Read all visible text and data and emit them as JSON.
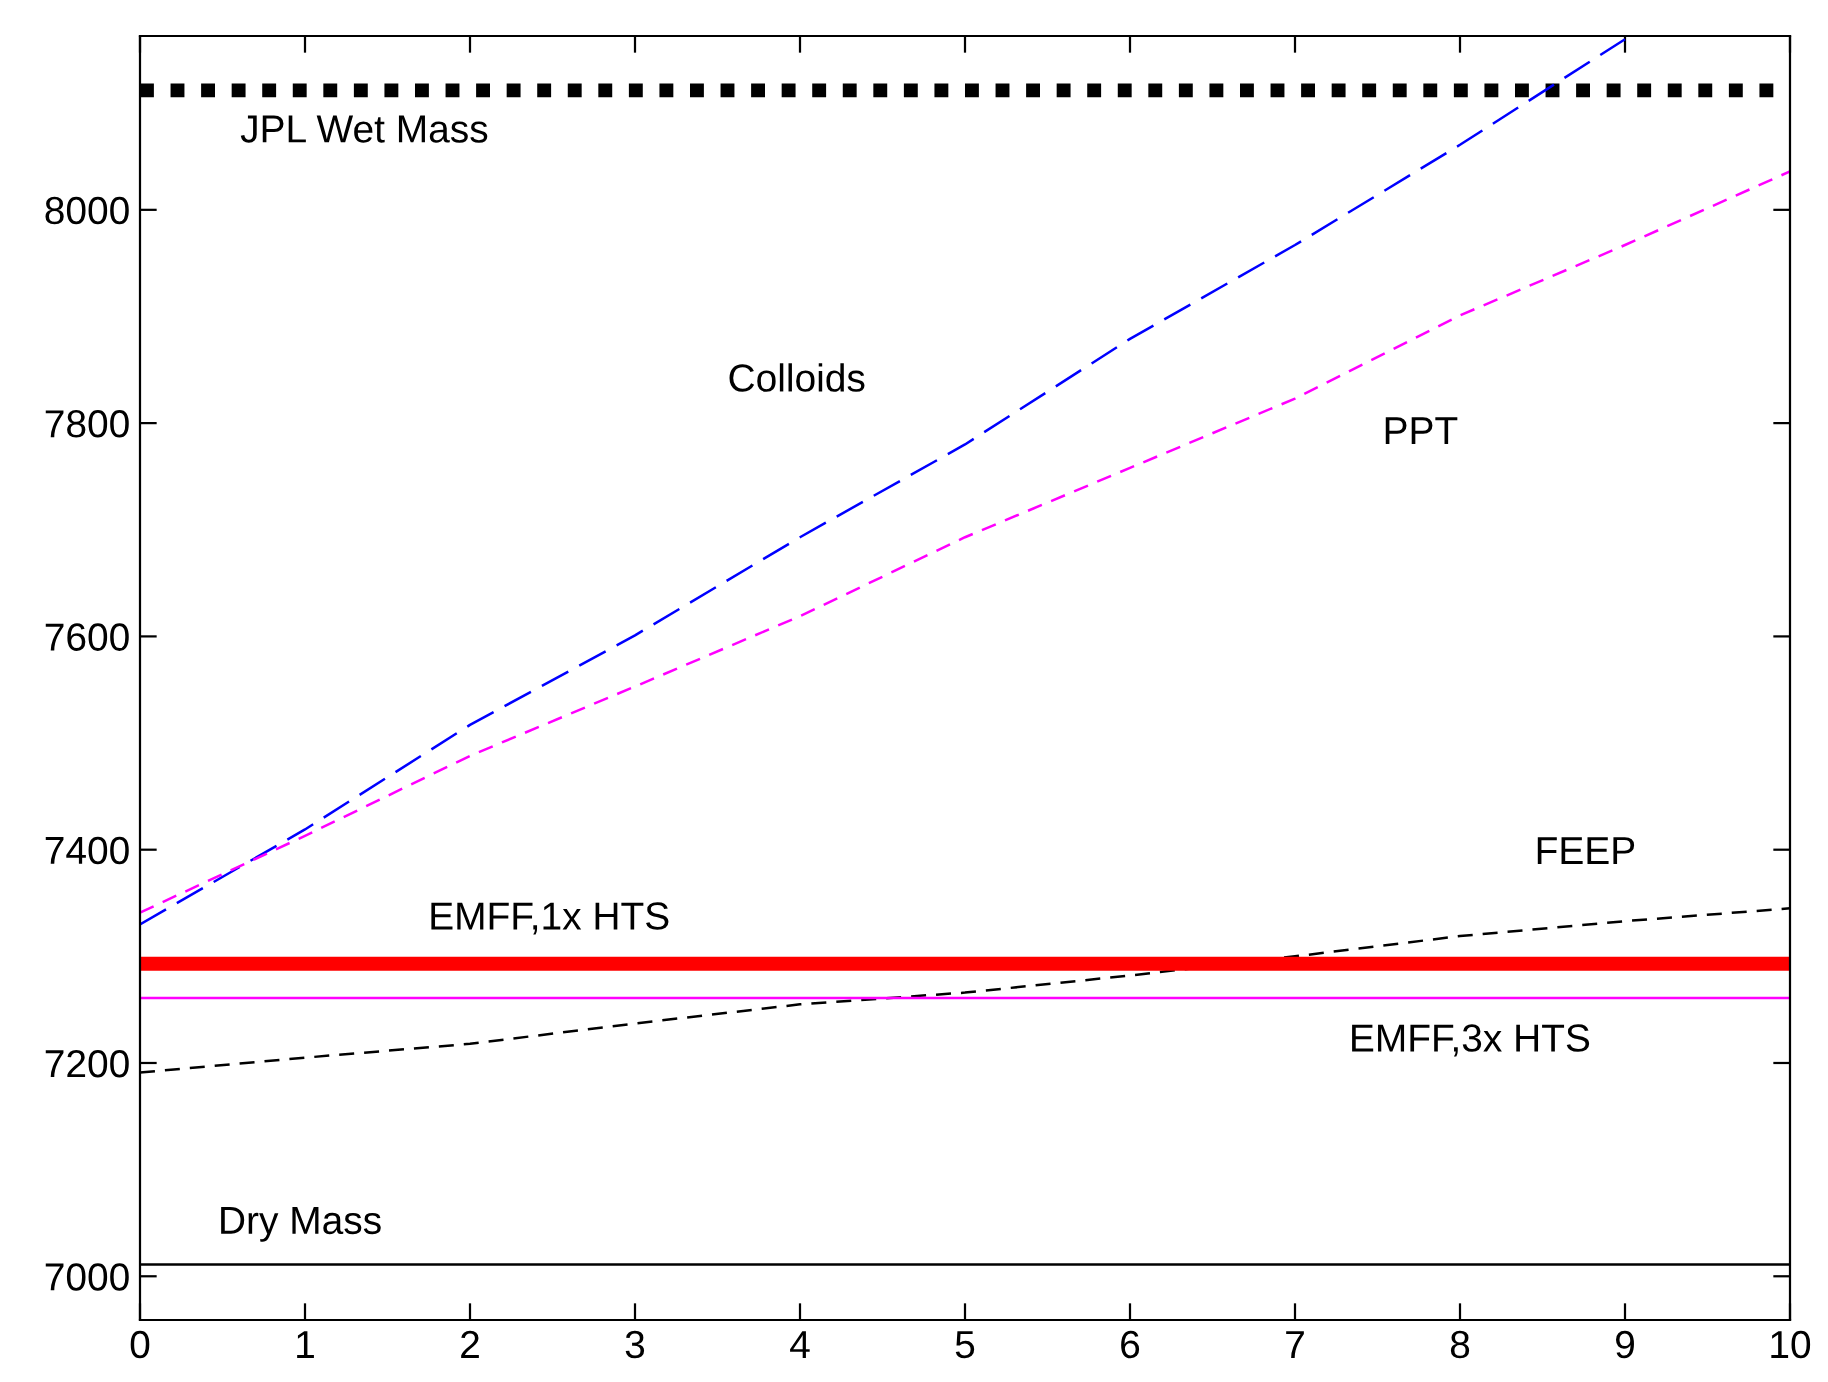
{
  "chart_data": {
    "type": "line",
    "x": [
      0,
      1,
      2,
      3,
      4,
      5,
      6,
      7,
      8,
      9,
      10
    ],
    "series": [
      {
        "name": "JPL Wet Mass",
        "color": "#000000",
        "line_style": "dotted",
        "values": [
          8112,
          8112,
          8112,
          8112,
          8112,
          8112,
          8112,
          8112,
          8112,
          8112,
          8112
        ]
      },
      {
        "name": "Colloids",
        "color": "#0000ff",
        "line_style": "dashed",
        "values": [
          7330,
          7419,
          7517,
          7601,
          7693,
          7780,
          7879,
          7967,
          8061,
          8160,
          null
        ]
      },
      {
        "name": "PPT",
        "color": "#ff00ff",
        "line_style": "dashed",
        "values": [
          7341,
          7413,
          7488,
          7553,
          7619,
          7693,
          7758,
          7823,
          7901,
          7967,
          8036
        ]
      },
      {
        "name": "FEEP",
        "color": "#000000",
        "line_style": "dashed",
        "values": [
          7191,
          7205,
          7218,
          7237,
          7255,
          7266,
          7282,
          7300,
          7319,
          7333,
          7345
        ]
      },
      {
        "name": "EMFF,1x HTS",
        "color": "#ff0000",
        "line_style": "solid",
        "values": [
          7293,
          7293,
          7293,
          7293,
          7293,
          7293,
          7293,
          7293,
          7293,
          7293,
          7293
        ]
      },
      {
        "name": "EMFF,3x HTS",
        "color": "#ff00ff",
        "line_style": "solid",
        "values": [
          7261,
          7261,
          7261,
          7261,
          7261,
          7261,
          7261,
          7261,
          7261,
          7261,
          7261
        ]
      },
      {
        "name": "Dry Mass",
        "color": "#000000",
        "line_style": "solid",
        "values": [
          7011,
          7011,
          7011,
          7011,
          7011,
          7011,
          7011,
          7011,
          7011,
          7011,
          7011
        ]
      }
    ],
    "xlim": [
      0,
      10
    ],
    "ylim": [
      6959,
      8163
    ],
    "xticks": [
      0,
      1,
      2,
      3,
      4,
      5,
      6,
      7,
      8,
      9,
      10
    ],
    "yticks": [
      7000,
      7200,
      7400,
      7600,
      7800,
      8000
    ],
    "grid": false,
    "legend": false,
    "marker": "none"
  }
}
